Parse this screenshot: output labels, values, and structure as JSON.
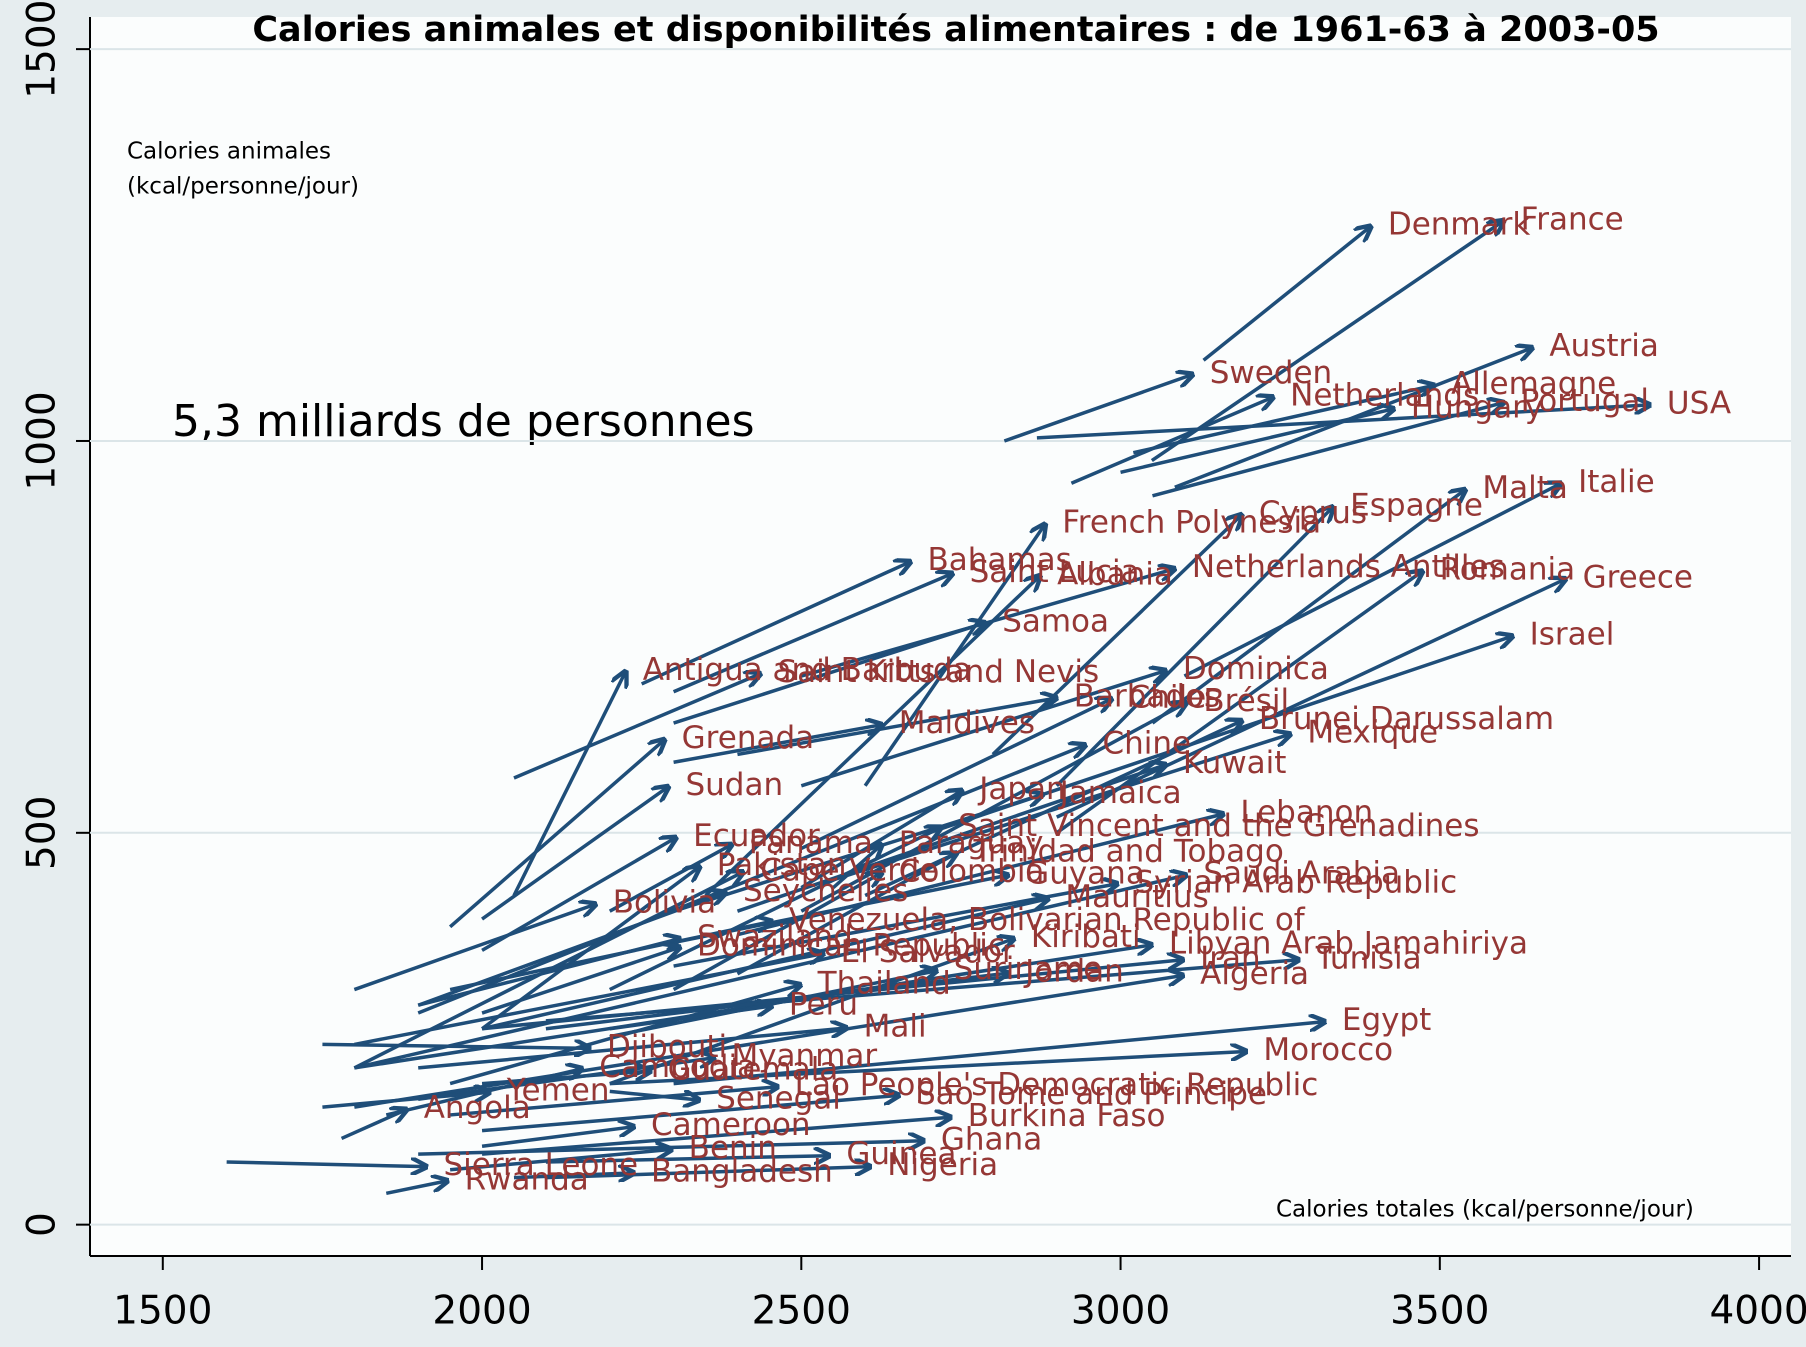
{
  "chart_data": {
    "type": "arrow",
    "title": "Calories animales et disponibilités alimentaires : de 1961-63 à 2003-05",
    "y_label": [
      "Calories animales",
      "(kcal/personne/jour)"
    ],
    "x_label": "Calories totales (kcal/personne/jour)",
    "annotation": "5,3 milliards de personnes",
    "xlim": [
      1386,
      4050
    ],
    "ylim": [
      -40,
      1541
    ],
    "xticks": [
      1500,
      2000,
      2500,
      3000,
      3500,
      4000
    ],
    "yticks": [
      0,
      500,
      1000,
      1500
    ],
    "grid": true,
    "arrow_color": "#1f4e79",
    "label_color": "#953735",
    "countries": [
      "Denmark",
      "France",
      "Austria",
      "Sweden",
      "Netherlands",
      "Allemagne",
      "Hungary",
      "Portugal",
      "USA",
      "French Polynesia",
      "Cyprus",
      "Espagne",
      "Malta",
      "Italie",
      "Bahamas",
      "Saint Lucia",
      "Albania",
      "Netherlands Antilles",
      "Romania",
      "Greece",
      "Samoa",
      "Israel",
      "Antigua and Barbuda",
      "Saint Kitts and Nevis",
      "Dominica",
      "Barbados",
      "Chile",
      "Brésil",
      "Brunei Darussalam",
      "Mexique",
      "Grenada",
      "Maldives",
      "Chine",
      "Kuwait",
      "Sudan",
      "Japan",
      "Jamaica",
      "Lebanon",
      "Saint Vincent and the Grenadines",
      "Ecuador",
      "Panama",
      "Paraguay",
      "Trinidad and Tobago",
      "Pakistan",
      "Cape Verde",
      "Colombia",
      "Guyana",
      "Saudi Arabia",
      "Syrian Arab Republic",
      "Mauritius",
      "Seychelles",
      "Bolivia",
      "Venezuela, Bolivarian Republic of",
      "Swaziland",
      "Dominican Republic",
      "El Salvador",
      "Kiribati",
      "Libyan Arab Jamahiriya",
      "Iran",
      "Tunisia",
      "Suriname",
      "Jordan",
      "Algeria",
      "Thailand",
      "Peru",
      "Mali",
      "Egypt",
      "Morocco",
      "Djibouti",
      "Myanmar",
      "Cambodia",
      "Guatemala",
      "Lao People's Democratic Republic",
      "Yemen",
      "Sao Tome and Principe",
      "Angola",
      "Senegal",
      "Burkina Faso",
      "Cameroon",
      "Ghana",
      "Benin",
      "Sierra Leone",
      "Guinea",
      "Rwanda",
      "Bangladesh",
      "Nigeria"
    ],
    "x_start": [
      3130,
      3049,
      3085,
      2818,
      2923,
      3020,
      3000,
      3050,
      2869,
      2600,
      2800,
      2900,
      3050,
      3100,
      2250,
      2300,
      2350,
      2500,
      2900,
      2900,
      2300,
      2700,
      2050,
      2050,
      2500,
      2400,
      2500,
      2500,
      2600,
      2550,
      1950,
      2300,
      1900,
      2400,
      2000,
      2500,
      2300,
      2400,
      2200,
      2000,
      2200,
      2550,
      2400,
      2000,
      1800,
      2300,
      2300,
      1800,
      2300,
      2000,
      1900,
      1800,
      1950,
      1900,
      2000,
      1800,
      2200,
      1800,
      2000,
      2100,
      2200,
      2100,
      1800,
      1950,
      2200,
      1900,
      2300,
      2200,
      1750,
      1900,
      1850,
      2000,
      1950,
      1750,
      2000,
      1780,
      2200,
      2000,
      2000,
      1900,
      1950,
      1600,
      2100,
      1850,
      2050,
      2100
    ],
    "y_start": [
      1103,
      975,
      941,
      1000,
      946,
      985,
      960,
      930,
      1004,
      560,
      600,
      560,
      640,
      700,
      690,
      680,
      420,
      700,
      500,
      520,
      640,
      500,
      420,
      570,
      560,
      600,
      480,
      400,
      420,
      440,
      380,
      590,
      270,
      400,
      390,
      430,
      400,
      370,
      300,
      350,
      400,
      430,
      320,
      250,
      200,
      300,
      360,
      200,
      330,
      250,
      280,
      300,
      300,
      280,
      270,
      230,
      180,
      200,
      250,
      260,
      240,
      250,
      150,
      180,
      250,
      200,
      180,
      180,
      230,
      160,
      140,
      180,
      140,
      150,
      120,
      110,
      170,
      90,
      100,
      90,
      70,
      80,
      80,
      40,
      60,
      60
    ],
    "x_end": [
      3392,
      3600,
      3645,
      3113,
      3239,
      3491,
      3428,
      3600,
      3829,
      2882,
      3190,
      3333,
      3540,
      3690,
      2671,
      2737,
      2874,
      3085,
      3473,
      3697,
      2788,
      3614,
      2225,
      2436,
      3071,
      2900,
      2986,
      3103,
      3190,
      3266,
      2286,
      2626,
      2945,
      3071,
      2292,
      2752,
      2878,
      3161,
      2719,
      2304,
      2391,
      2626,
      2743,
      2341,
      2409,
      2626,
      2824,
      3103,
      2995,
      2887,
      2382,
      2178,
      2454,
      2310,
      2310,
      2535,
      2833,
      3049,
      3098,
      3279,
      2712,
      2824,
      3098,
      2499,
      2454,
      2571,
      3320,
      3197,
      2169,
      2364,
      2157,
      2264,
      2463,
      2012,
      2653,
      1882,
      2340,
      2734,
      2238,
      2692,
      2297,
      1913,
      2544,
      1946,
      2238,
      2608
    ],
    "y_end": [
      1274,
      1281,
      1119,
      1085,
      1056,
      1071,
      1041,
      1049,
      1046,
      894,
      906,
      916,
      938,
      946,
      846,
      831,
      828,
      837,
      834,
      824,
      768,
      751,
      706,
      703,
      707,
      672,
      671,
      666,
      643,
      626,
      619,
      638,
      612,
      587,
      559,
      554,
      549,
      524,
      507,
      494,
      485,
      485,
      474,
      457,
      450,
      449,
      446,
      446,
      435,
      416,
      424,
      409,
      387,
      365,
      354,
      346,
      365,
      357,
      338,
      338,
      324,
      321,
      318,
      306,
      279,
      251,
      259,
      221,
      225,
      213,
      199,
      196,
      176,
      169,
      165,
      147,
      159,
      137,
      125,
      107,
      96,
      74,
      88,
      56,
      66,
      74
    ]
  }
}
